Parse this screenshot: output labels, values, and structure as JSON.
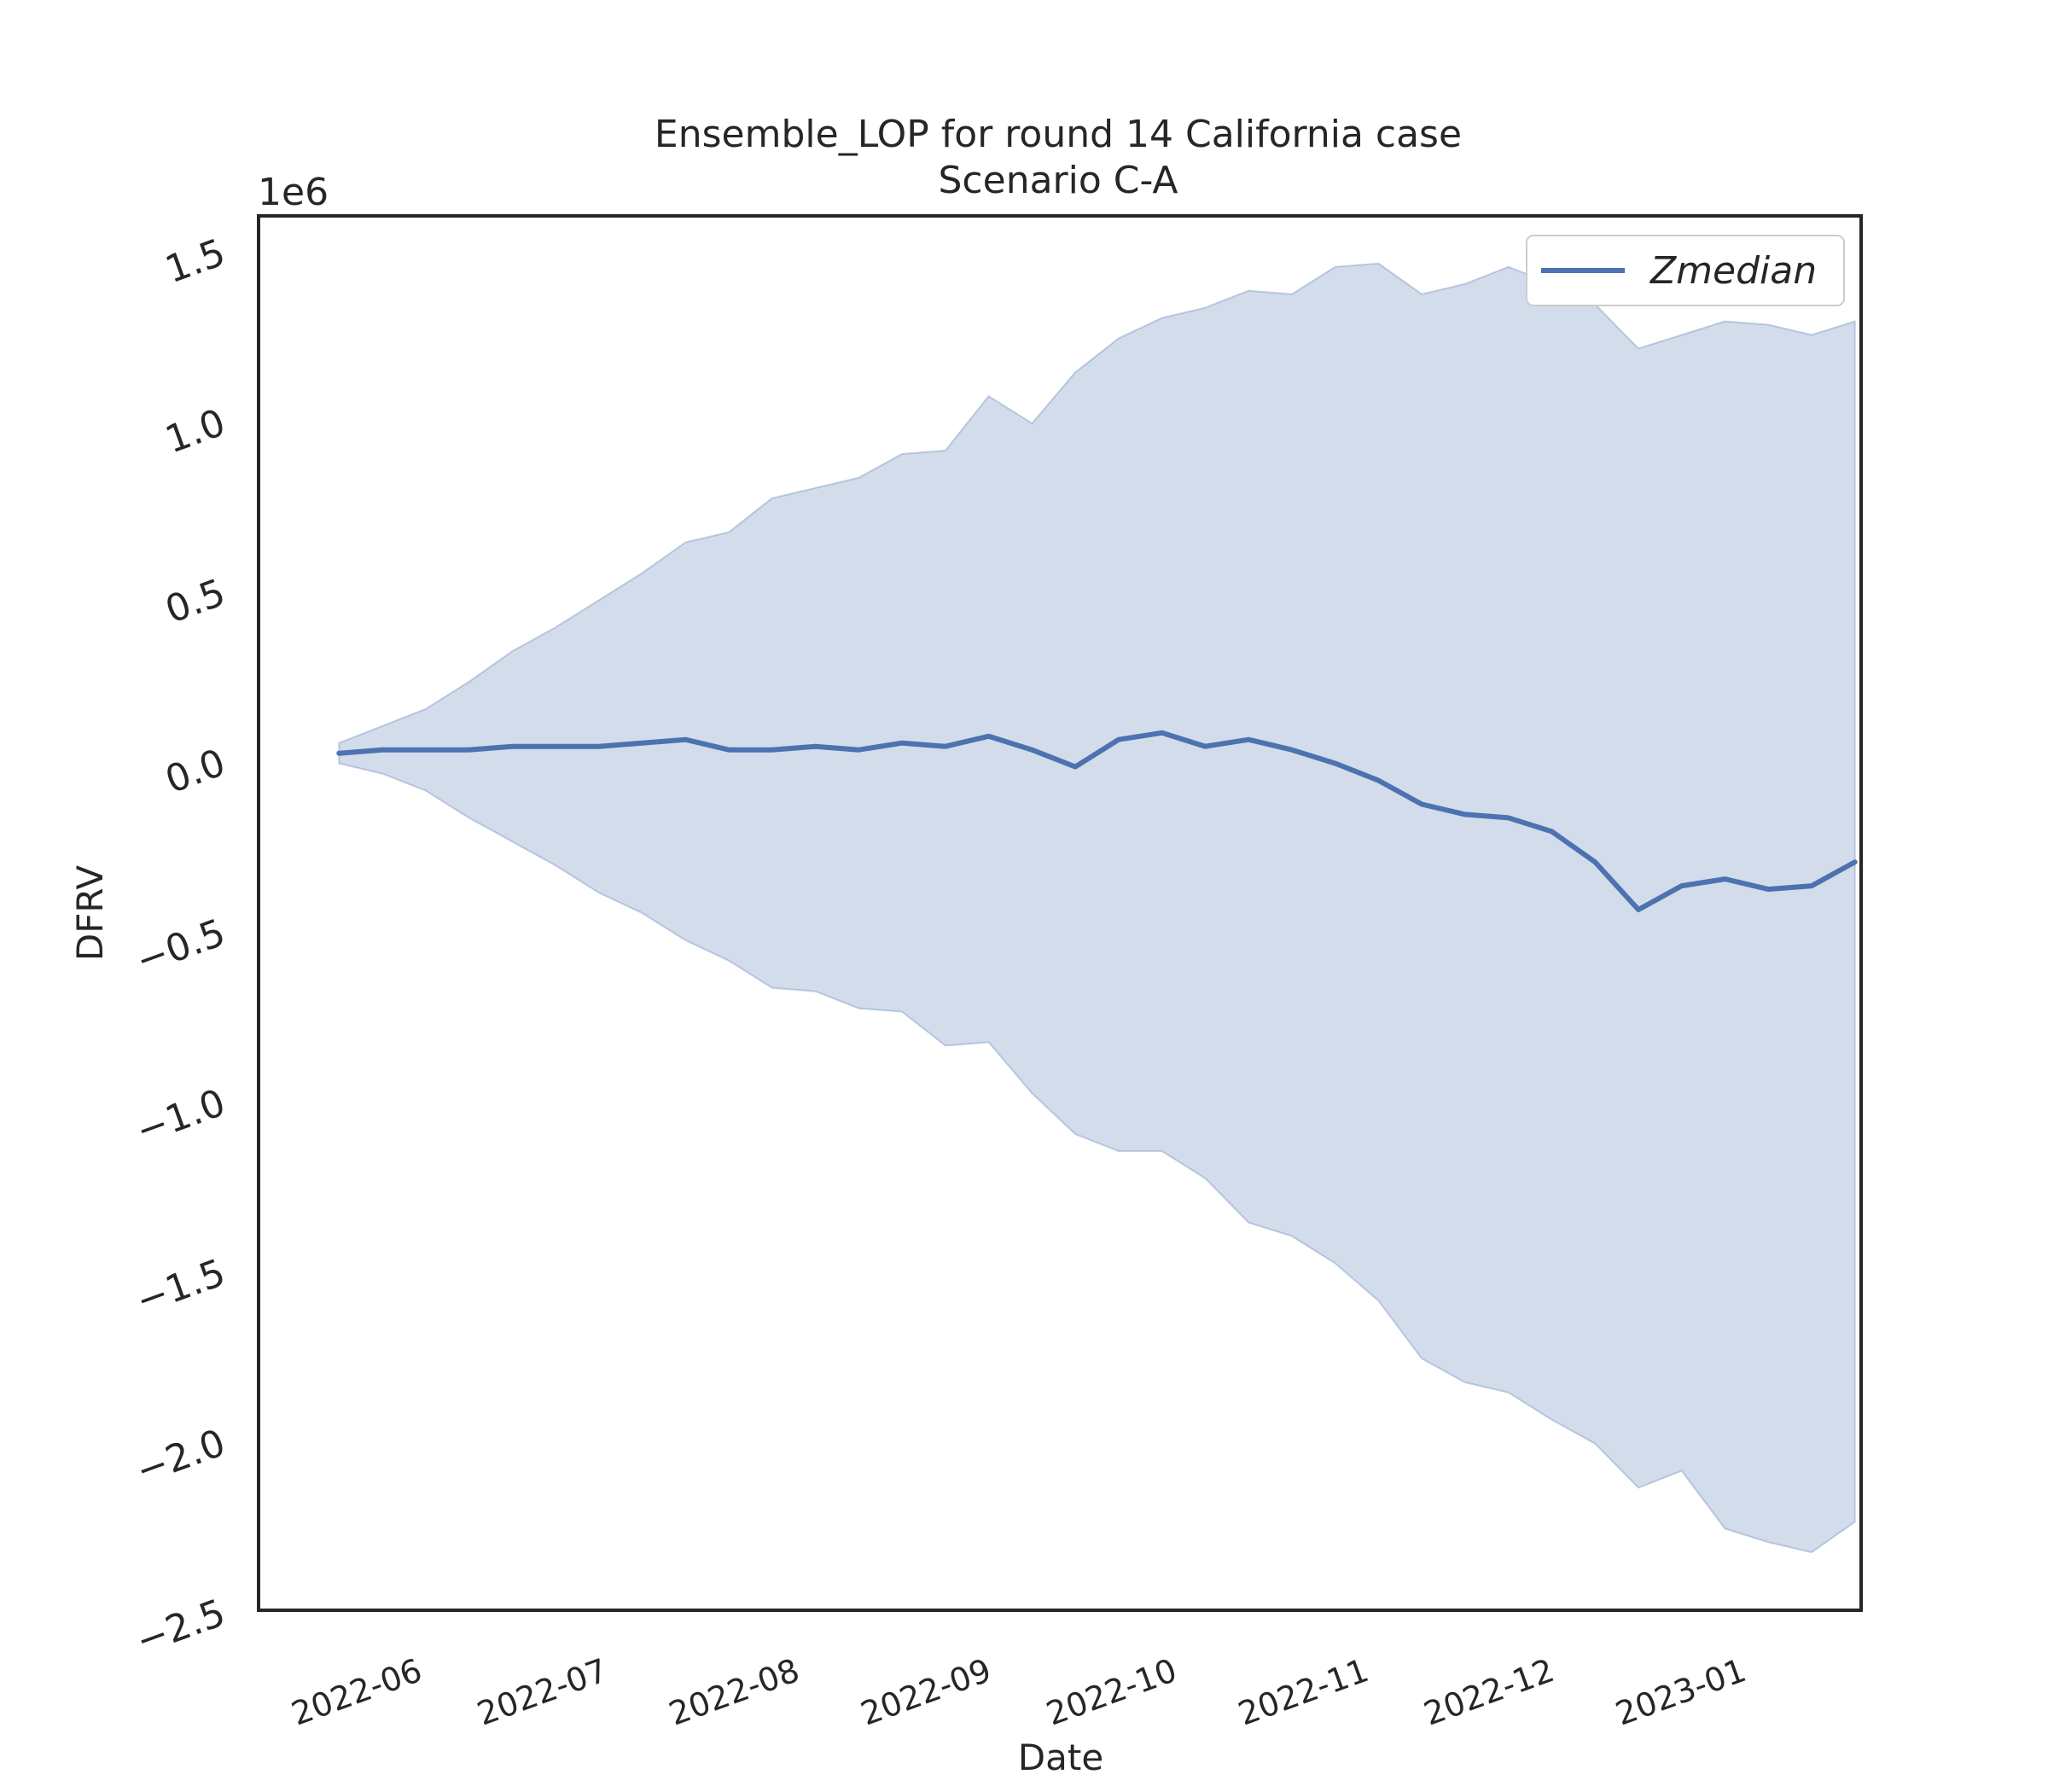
{
  "chart_data": {
    "type": "area",
    "title_line1": "Ensemble_LOP for round 14 California case",
    "title_line2": "Scenario C-A",
    "xlabel": "Date",
    "ylabel": "DFRV",
    "y_scale_label": "1e6",
    "ylim": [
      -2.5,
      1.6
    ],
    "xlim": [
      "2022-05-08",
      "2023-01-22"
    ],
    "y_ticks": [
      {
        "value": 1.5,
        "label": "1.5"
      },
      {
        "value": 1.0,
        "label": "1.0"
      },
      {
        "value": 0.5,
        "label": "0.5"
      },
      {
        "value": 0.0,
        "label": "0.0"
      },
      {
        "value": -0.5,
        "label": "−0.5"
      },
      {
        "value": -1.0,
        "label": "−1.0"
      },
      {
        "value": -1.5,
        "label": "−1.5"
      },
      {
        "value": -2.0,
        "label": "−2.0"
      },
      {
        "value": -2.5,
        "label": "−2.5"
      }
    ],
    "x_ticks": [
      {
        "date": "2022-06-01",
        "label": "2022-06"
      },
      {
        "date": "2022-07-01",
        "label": "2022-07"
      },
      {
        "date": "2022-08-01",
        "label": "2022-08"
      },
      {
        "date": "2022-09-01",
        "label": "2022-09"
      },
      {
        "date": "2022-10-01",
        "label": "2022-10"
      },
      {
        "date": "2022-11-01",
        "label": "2022-11"
      },
      {
        "date": "2022-12-01",
        "label": "2022-12"
      },
      {
        "date": "2023-01-01",
        "label": "2023-01"
      }
    ],
    "x": [
      "2022-05-21",
      "2022-05-28",
      "2022-06-04",
      "2022-06-11",
      "2022-06-18",
      "2022-06-25",
      "2022-07-02",
      "2022-07-09",
      "2022-07-16",
      "2022-07-23",
      "2022-07-30",
      "2022-08-06",
      "2022-08-13",
      "2022-08-20",
      "2022-08-27",
      "2022-09-03",
      "2022-09-10",
      "2022-09-17",
      "2022-09-24",
      "2022-10-01",
      "2022-10-08",
      "2022-10-15",
      "2022-10-22",
      "2022-10-29",
      "2022-11-05",
      "2022-11-12",
      "2022-11-19",
      "2022-11-26",
      "2022-12-03",
      "2022-12-10",
      "2022-12-17",
      "2022-12-24",
      "2022-12-31",
      "2023-01-07",
      "2023-01-14",
      "2023-01-21"
    ],
    "series": [
      {
        "name": "Zmedian",
        "color": "#4c72b0",
        "values": [
          0.02,
          0.03,
          0.03,
          0.03,
          0.04,
          0.04,
          0.04,
          0.05,
          0.06,
          0.03,
          0.03,
          0.04,
          0.03,
          0.05,
          0.04,
          0.07,
          0.03,
          -0.02,
          0.06,
          0.08,
          0.04,
          0.06,
          0.03,
          -0.01,
          -0.06,
          -0.13,
          -0.16,
          -0.17,
          -0.21,
          -0.3,
          -0.44,
          -0.37,
          -0.35,
          -0.38,
          -0.37,
          -0.3
        ]
      }
    ],
    "band": {
      "color": "#4c72b0",
      "opacity": 0.25,
      "upper": [
        0.05,
        0.1,
        0.15,
        0.23,
        0.32,
        0.39,
        0.47,
        0.55,
        0.64,
        0.67,
        0.77,
        0.8,
        0.83,
        0.9,
        0.91,
        1.07,
        0.99,
        1.14,
        1.24,
        1.3,
        1.33,
        1.38,
        1.37,
        1.45,
        1.46,
        1.37,
        1.4,
        1.45,
        1.4,
        1.34,
        1.21,
        1.25,
        1.29,
        1.28,
        1.25,
        1.29
      ],
      "lower": [
        -0.01,
        -0.04,
        -0.09,
        -0.17,
        -0.24,
        -0.31,
        -0.39,
        -0.45,
        -0.53,
        -0.59,
        -0.67,
        -0.68,
        -0.73,
        -0.74,
        -0.84,
        -0.83,
        -0.98,
        -1.1,
        -1.15,
        -1.15,
        -1.23,
        -1.36,
        -1.4,
        -1.48,
        -1.59,
        -1.76,
        -1.83,
        -1.86,
        -1.94,
        -2.01,
        -2.14,
        -2.09,
        -2.26,
        -2.3,
        -2.33,
        -2.24
      ]
    },
    "legend": {
      "position": "top-right",
      "entries": [
        "Zmedian"
      ]
    },
    "grid": false
  }
}
